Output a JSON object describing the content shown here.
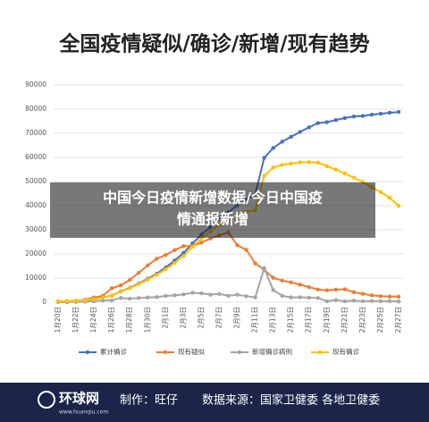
{
  "chart_data": {
    "type": "line",
    "title": "全国疫情疑似/确诊/新增/现有趋势",
    "categories": [
      "1月20日",
      null,
      "1月22日",
      null,
      "1月24日",
      null,
      "1月26日",
      null,
      "1月28日",
      null,
      "1月30日",
      null,
      "2月1日",
      null,
      "2月3日",
      null,
      "2月5日",
      null,
      "2月7日",
      null,
      "2月9日",
      null,
      "2月11日",
      null,
      "2月13日",
      null,
      "2月15日",
      null,
      "2月17日",
      null,
      "2月19日",
      null,
      "2月21日",
      null,
      "2月23日",
      null,
      "2月25日",
      null,
      "2月27日"
    ],
    "series": [
      {
        "name": "累计确诊",
        "color": "#4472c4",
        "values": [
          291,
          440,
          571,
          830,
          1287,
          1975,
          2744,
          4515,
          5974,
          7711,
          9692,
          11791,
          14380,
          17205,
          20438,
          24324,
          28018,
          31161,
          34546,
          37198,
          40171,
          42638,
          44653,
          59804,
          63851,
          66492,
          68500,
          70548,
          72436,
          74185,
          74576,
          75465,
          76288,
          76936,
          77150,
          77658,
          78064,
          78497,
          78824
        ]
      },
      {
        "name": "现有疑似",
        "color": "#ed7d31",
        "values": [
          54,
          37,
          393,
          1072,
          1965,
          2684,
          5794,
          6973,
          9239,
          12167,
          15238,
          17988,
          19544,
          21558,
          23214,
          23260,
          24702,
          26359,
          27657,
          28942,
          23589,
          21675,
          16067,
          13435,
          10109,
          8969,
          8228,
          7264,
          6242,
          5248,
          4922,
          5206,
          5365,
          4148,
          3434,
          2824,
          2491,
          2358,
          2308
        ]
      },
      {
        "name": "新增确诊病例",
        "color": "#a5a5a5",
        "values": [
          77,
          149,
          131,
          259,
          444,
          688,
          769,
          1771,
          1459,
          1737,
          1981,
          2099,
          2589,
          2825,
          3235,
          3887,
          3694,
          3143,
          3399,
          2656,
          3062,
          2478,
          2015,
          14108,
          5090,
          2641,
          2009,
          2048,
          1886,
          1749,
          394,
          889,
          397,
          648,
          409,
          508,
          406,
          433,
          327
        ]
      },
      {
        "name": "现有确诊",
        "color": "#ffc000",
        "values": [
          291,
          440,
          571,
          830,
          1287,
          1975,
          2684,
          4409,
          5832,
          7453,
          9382,
          11363,
          13682,
          16228,
          19146,
          22940,
          26464,
          29265,
          32096,
          33941,
          35911,
          37408,
          38098,
          52280,
          55748,
          56873,
          57416,
          57934,
          58016,
          57805,
          56303,
          54965,
          53284,
          51606,
          49824,
          47672,
          45604,
          43258,
          39919
        ]
      }
    ],
    "ylim": [
      0,
      90000
    ],
    "yticks": [
      0,
      10000,
      20000,
      30000,
      40000,
      50000,
      60000,
      70000,
      80000,
      90000
    ],
    "grid": true,
    "legend": "bottom"
  },
  "overlay": {
    "line1": "中国今日疫情新增数据/今日中国疫",
    "line2": "情通报新增"
  },
  "footer": {
    "logo": "环球网",
    "site": "www.huanqiu.com",
    "maker": "制作：旺仔",
    "source": "数据来源：国家卫健委 各地卫健委"
  }
}
